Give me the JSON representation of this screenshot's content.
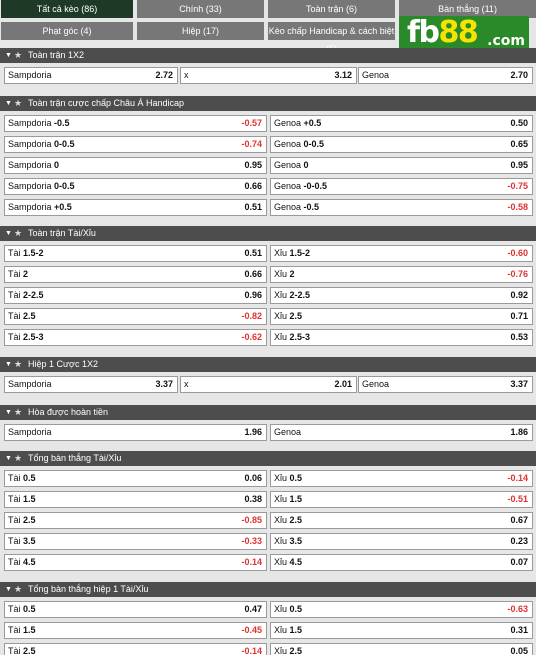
{
  "tabs": [
    {
      "label": "Tất cả kèo (86)",
      "active": true
    },
    {
      "label": "Chính (33)",
      "active": false
    },
    {
      "label": "Toàn trận (6)",
      "active": false
    },
    {
      "label": "Bàn thắng (11)",
      "active": false
    },
    {
      "label": "Phạt góc (4)",
      "active": false
    },
    {
      "label": "Hiệp (17)",
      "active": false
    },
    {
      "label": "Kèo chấp Handicap & cách biệt (5)",
      "active": false
    }
  ],
  "logo": {
    "text_main": "fb",
    "text_accent": "88",
    "domain": ".com"
  },
  "sections": [
    {
      "title": "Toàn trận 1X2",
      "cols": 3,
      "rows": [
        [
          {
            "name": "Sampdoria",
            "line": "",
            "odds": "2.72"
          },
          {
            "name": "x",
            "line": "",
            "odds": "3.12"
          },
          {
            "name": "Genoa",
            "line": "",
            "odds": "2.70"
          }
        ]
      ]
    },
    {
      "title": "Toàn trận cược chấp Châu Á Handicap",
      "cols": 2,
      "rows": [
        [
          {
            "name": "Sampdoria",
            "line": "-0.5",
            "odds": "-0.57"
          },
          {
            "name": "Genoa",
            "line": "+0.5",
            "odds": "0.50"
          }
        ],
        [
          {
            "name": "Sampdoria",
            "line": "0-0.5",
            "odds": "-0.74"
          },
          {
            "name": "Genoa",
            "line": "0-0.5",
            "odds": "0.65"
          }
        ],
        [
          {
            "name": "Sampdoria",
            "line": "0",
            "odds": "0.95"
          },
          {
            "name": "Genoa",
            "line": "0",
            "odds": "0.95"
          }
        ],
        [
          {
            "name": "Sampdoria",
            "line": "0-0.5",
            "odds": "0.66"
          },
          {
            "name": "Genoa",
            "line": "-0-0.5",
            "odds": "-0.75"
          }
        ],
        [
          {
            "name": "Sampdoria",
            "line": "+0.5",
            "odds": "0.51"
          },
          {
            "name": "Genoa",
            "line": "-0.5",
            "odds": "-0.58"
          }
        ]
      ]
    },
    {
      "title": "Toàn trận Tài/Xỉu",
      "cols": 2,
      "rows": [
        [
          {
            "name": "Tài",
            "line": "1.5-2",
            "odds": "0.51"
          },
          {
            "name": "Xỉu",
            "line": "1.5-2",
            "odds": "-0.60"
          }
        ],
        [
          {
            "name": "Tài",
            "line": "2",
            "odds": "0.66"
          },
          {
            "name": "Xỉu",
            "line": "2",
            "odds": "-0.76"
          }
        ],
        [
          {
            "name": "Tài",
            "line": "2-2.5",
            "odds": "0.96"
          },
          {
            "name": "Xỉu",
            "line": "2-2.5",
            "odds": "0.92"
          }
        ],
        [
          {
            "name": "Tài",
            "line": "2.5",
            "odds": "-0.82"
          },
          {
            "name": "Xỉu",
            "line": "2.5",
            "odds": "0.71"
          }
        ],
        [
          {
            "name": "Tài",
            "line": "2.5-3",
            "odds": "-0.62"
          },
          {
            "name": "Xỉu",
            "line": "2.5-3",
            "odds": "0.53"
          }
        ]
      ]
    },
    {
      "title": "Hiệp 1 Cược 1X2",
      "cols": 3,
      "rows": [
        [
          {
            "name": "Sampdoria",
            "line": "",
            "odds": "3.37"
          },
          {
            "name": "x",
            "line": "",
            "odds": "2.01"
          },
          {
            "name": "Genoa",
            "line": "",
            "odds": "3.37"
          }
        ]
      ]
    },
    {
      "title": "Hòa được hoàn tiền",
      "cols": 2,
      "rows": [
        [
          {
            "name": "Sampdoria",
            "line": "",
            "odds": "1.96"
          },
          {
            "name": "Genoa",
            "line": "",
            "odds": "1.86"
          }
        ]
      ]
    },
    {
      "title": "Tổng bàn thắng Tài/Xỉu",
      "cols": 2,
      "rows": [
        [
          {
            "name": "Tài",
            "line": "0.5",
            "odds": "0.06"
          },
          {
            "name": "Xỉu",
            "line": "0.5",
            "odds": "-0.14"
          }
        ],
        [
          {
            "name": "Tài",
            "line": "1.5",
            "odds": "0.38"
          },
          {
            "name": "Xỉu",
            "line": "1.5",
            "odds": "-0.51"
          }
        ],
        [
          {
            "name": "Tài",
            "line": "2.5",
            "odds": "-0.85"
          },
          {
            "name": "Xỉu",
            "line": "2.5",
            "odds": "0.67"
          }
        ],
        [
          {
            "name": "Tài",
            "line": "3.5",
            "odds": "-0.33"
          },
          {
            "name": "Xỉu",
            "line": "3.5",
            "odds": "0.23"
          }
        ],
        [
          {
            "name": "Tài",
            "line": "4.5",
            "odds": "-0.14"
          },
          {
            "name": "Xỉu",
            "line": "4.5",
            "odds": "0.07"
          }
        ]
      ]
    },
    {
      "title": "Tổng bàn thắng hiệp 1 Tài/Xỉu",
      "cols": 2,
      "rows": [
        [
          {
            "name": "Tài",
            "line": "0.5",
            "odds": "0.47"
          },
          {
            "name": "Xỉu",
            "line": "0.5",
            "odds": "-0.63"
          }
        ],
        [
          {
            "name": "Tài",
            "line": "1.5",
            "odds": "-0.45"
          },
          {
            "name": "Xỉu",
            "line": "1.5",
            "odds": "0.31"
          }
        ],
        [
          {
            "name": "Tài",
            "line": "2.5",
            "odds": "-0.14"
          },
          {
            "name": "Xỉu",
            "line": "2.5",
            "odds": "0.05"
          }
        ]
      ]
    }
  ],
  "colors": {
    "header_bg": "#4d4d4d",
    "tab_active": "#1e3a26",
    "tab_inactive": "#777777",
    "negative": "#e03131",
    "logo_bg": "#2a8a2a",
    "logo_accent": "#f5e400"
  },
  "icons": {
    "collapse": "caret-down-icon",
    "favorite": "star-icon"
  }
}
